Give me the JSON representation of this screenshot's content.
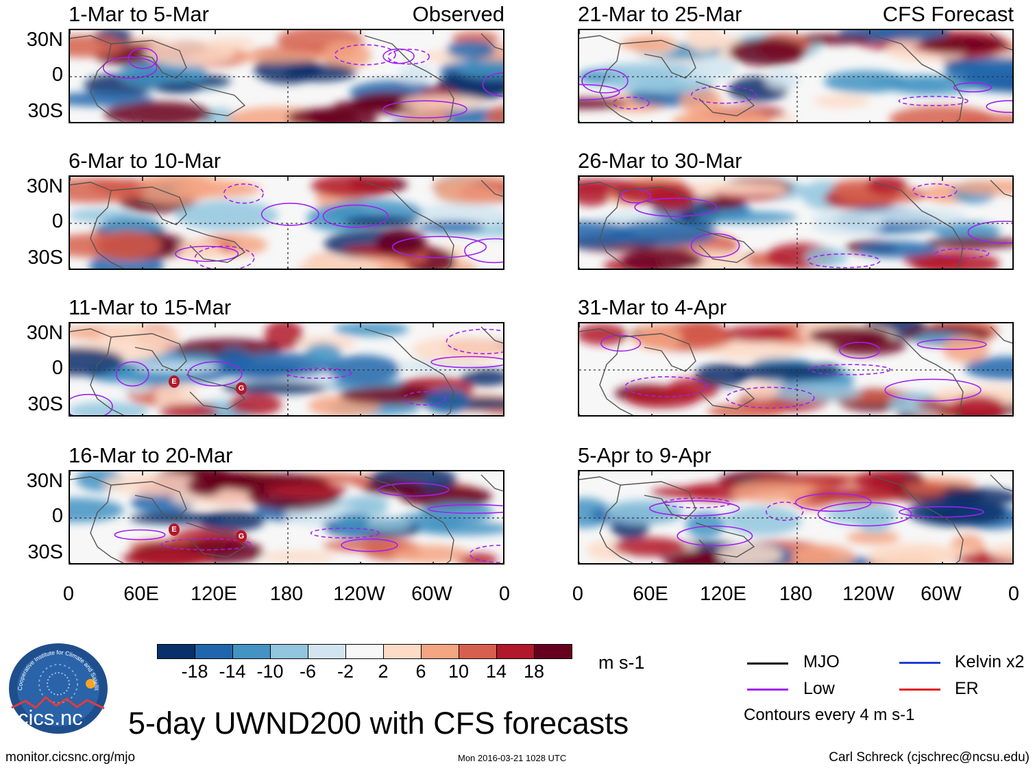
{
  "title": "5-day UWND200 with CFS forecasts",
  "panels": [
    {
      "label": "1-Mar to 5-Mar",
      "tag": "Observed",
      "col": 0,
      "row": 0,
      "tc_markers": []
    },
    {
      "label": "6-Mar to 10-Mar",
      "tag": "",
      "col": 0,
      "row": 1,
      "tc_markers": []
    },
    {
      "label": "11-Mar to 15-Mar",
      "tag": "",
      "col": 0,
      "row": 2,
      "tc_markers": [
        "E",
        "G"
      ]
    },
    {
      "label": "16-Mar to 20-Mar",
      "tag": "",
      "col": 0,
      "row": 3,
      "tc_markers": [
        "E",
        "G"
      ]
    },
    {
      "label": "21-Mar to 25-Mar",
      "tag": "CFS Forecast",
      "col": 1,
      "row": 0,
      "tc_markers": []
    },
    {
      "label": "26-Mar to 30-Mar",
      "tag": "",
      "col": 1,
      "row": 1,
      "tc_markers": []
    },
    {
      "label": "31-Mar to 4-Apr",
      "tag": "",
      "col": 1,
      "row": 2,
      "tc_markers": []
    },
    {
      "label": "5-Apr to 9-Apr",
      "tag": "",
      "col": 1,
      "row": 3,
      "tc_markers": []
    }
  ],
  "lat_labels": [
    "30N",
    "0",
    "30S"
  ],
  "lon_labels": [
    "0",
    "60E",
    "120E",
    "180",
    "120W",
    "60W",
    "0"
  ],
  "colorbar": {
    "colors": [
      "#08306b",
      "#2166ac",
      "#4393c3",
      "#92c5de",
      "#d1e5f0",
      "#f7f7f7",
      "#fddbc7",
      "#f4a582",
      "#d6604d",
      "#b2182b",
      "#67001f"
    ],
    "labels": [
      "-18",
      "-14",
      "-10",
      "-6",
      "-2",
      "2",
      "6",
      "10",
      "14",
      "18"
    ],
    "units": "m s-1"
  },
  "legend": {
    "items": [
      {
        "label": "MJO",
        "color": "#000000"
      },
      {
        "label": "Kelvin x2",
        "color": "#1f3fd6"
      },
      {
        "label": "Low",
        "color": "#a020f0"
      },
      {
        "label": "ER",
        "color": "#e0141a"
      }
    ],
    "note": "Contours every 4 m s-1"
  },
  "logo": {
    "text": "cics.nc",
    "ring_text": "Cooperative Institute for Climate and Satellites"
  },
  "footer": {
    "url": "monitor.cicsnc.org/mjo",
    "timestamp": "Mon 2016-03-21 1028 UTC",
    "author": "Carl Schreck (cjschrec@ncsu.edu)"
  }
}
